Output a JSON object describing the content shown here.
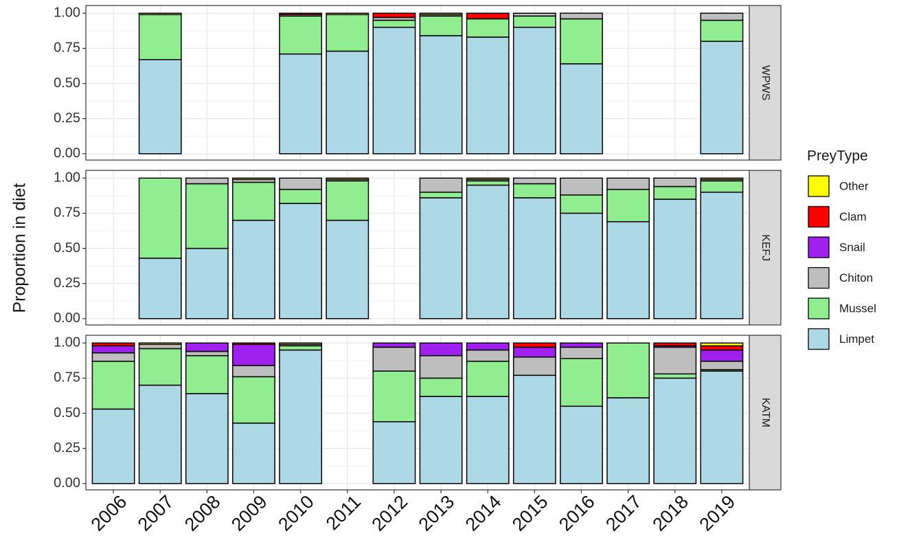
{
  "ylabel": "Proportion in diet",
  "legend_title": "PreyType",
  "chart_data": [
    {
      "type": "bar",
      "stacked": true,
      "panel": "WPWS",
      "categories": [
        "2006",
        "2007",
        "2008",
        "2009",
        "2010",
        "2011",
        "2012",
        "2013",
        "2014",
        "2015",
        "2016",
        "2017",
        "2018",
        "2019"
      ],
      "series": [
        {
          "name": "Limpet",
          "color": "#add8e6",
          "values": [
            null,
            0.67,
            null,
            null,
            0.71,
            0.73,
            0.9,
            0.84,
            0.83,
            0.9,
            0.64,
            null,
            null,
            0.8
          ]
        },
        {
          "name": "Mussel",
          "color": "#90ee90",
          "values": [
            null,
            0.32,
            null,
            null,
            0.27,
            0.26,
            0.05,
            0.14,
            0.13,
            0.08,
            0.32,
            null,
            null,
            0.15
          ]
        },
        {
          "name": "Chiton",
          "color": "#bebebe",
          "values": [
            null,
            0,
            null,
            null,
            0.01,
            0,
            0.02,
            0.01,
            0,
            0.02,
            0.04,
            null,
            null,
            0.05
          ]
        },
        {
          "name": "Snail",
          "color": "#a020f0",
          "values": [
            null,
            0,
            null,
            null,
            0,
            0,
            0,
            0,
            0,
            0,
            0,
            null,
            null,
            0
          ]
        },
        {
          "name": "Clam",
          "color": "#ff0000",
          "values": [
            null,
            0,
            null,
            null,
            0.01,
            0,
            0.03,
            0,
            0.04,
            0,
            0,
            null,
            null,
            0
          ]
        },
        {
          "name": "Other",
          "color": "#ffff00",
          "values": [
            null,
            0.01,
            null,
            null,
            0,
            0.01,
            0,
            0.01,
            0,
            0,
            0,
            null,
            null,
            0
          ]
        }
      ],
      "ylim": [
        -0.045,
        1.055
      ],
      "yticks": [
        {
          "value": 0,
          "label": "0.00"
        },
        {
          "value": 0.25,
          "label": "0.25"
        },
        {
          "value": 0.5,
          "label": "0.50"
        },
        {
          "value": 0.75,
          "label": "0.75"
        },
        {
          "value": 1,
          "label": "1.00"
        }
      ],
      "grid": true
    },
    {
      "type": "bar",
      "stacked": true,
      "panel": "KEFJ",
      "categories": [
        "2006",
        "2007",
        "2008",
        "2009",
        "2010",
        "2011",
        "2012",
        "2013",
        "2014",
        "2015",
        "2016",
        "2017",
        "2018",
        "2019"
      ],
      "series": [
        {
          "name": "Limpet",
          "color": "#add8e6",
          "values": [
            null,
            0.43,
            0.5,
            0.7,
            0.82,
            0.7,
            null,
            0.86,
            0.95,
            0.86,
            0.75,
            0.69,
            0.85,
            0.9
          ]
        },
        {
          "name": "Mussel",
          "color": "#90ee90",
          "values": [
            null,
            0.57,
            0.46,
            0.27,
            0.1,
            0.28,
            null,
            0.04,
            0.03,
            0.1,
            0.13,
            0.23,
            0.09,
            0.08
          ]
        },
        {
          "name": "Chiton",
          "color": "#bebebe",
          "values": [
            null,
            0,
            0.04,
            0.02,
            0.08,
            0.01,
            null,
            0.1,
            0.01,
            0.04,
            0.12,
            0.08,
            0.06,
            0.01
          ]
        },
        {
          "name": "Snail",
          "color": "#a020f0",
          "values": [
            null,
            0,
            0,
            0,
            0,
            0,
            null,
            0,
            0,
            0,
            0,
            0,
            0,
            0
          ]
        },
        {
          "name": "Clam",
          "color": "#ff0000",
          "values": [
            null,
            0,
            0,
            0,
            0,
            0,
            null,
            0,
            0,
            0,
            0,
            0,
            0,
            0
          ]
        },
        {
          "name": "Other",
          "color": "#ffff00",
          "values": [
            null,
            0,
            0,
            0.01,
            0,
            0.01,
            null,
            0,
            0.01,
            0,
            0,
            0,
            0,
            0.01
          ]
        }
      ],
      "ylim": [
        -0.045,
        1.055
      ],
      "yticks": [
        {
          "value": 0,
          "label": "0.00"
        },
        {
          "value": 0.25,
          "label": "0.25"
        },
        {
          "value": 0.5,
          "label": "0.50"
        },
        {
          "value": 0.75,
          "label": "0.75"
        },
        {
          "value": 1,
          "label": "1.00"
        }
      ],
      "grid": true
    },
    {
      "type": "bar",
      "stacked": true,
      "panel": "KATM",
      "categories": [
        "2006",
        "2007",
        "2008",
        "2009",
        "2010",
        "2011",
        "2012",
        "2013",
        "2014",
        "2015",
        "2016",
        "2017",
        "2018",
        "2019"
      ],
      "series": [
        {
          "name": "Limpet",
          "color": "#add8e6",
          "values": [
            0.53,
            0.7,
            0.64,
            0.43,
            0.95,
            null,
            0.44,
            0.62,
            0.62,
            0.77,
            0.55,
            0.61,
            0.75,
            0.8
          ]
        },
        {
          "name": "Mussel",
          "color": "#90ee90",
          "values": [
            0.34,
            0.26,
            0.27,
            0.33,
            0.03,
            null,
            0.36,
            0.13,
            0.25,
            0,
            0.34,
            0.39,
            0.03,
            0.01
          ]
        },
        {
          "name": "Chiton",
          "color": "#bebebe",
          "values": [
            0.06,
            0.03,
            0.03,
            0.08,
            0.01,
            null,
            0.17,
            0.16,
            0.08,
            0.13,
            0.08,
            0,
            0.19,
            0.06
          ]
        },
        {
          "name": "Snail",
          "color": "#a020f0",
          "values": [
            0.05,
            0,
            0.06,
            0.15,
            0,
            null,
            0.03,
            0.09,
            0.05,
            0.07,
            0.03,
            0,
            0.01,
            0.08
          ]
        },
        {
          "name": "Clam",
          "color": "#ff0000",
          "values": [
            0.02,
            0,
            0,
            0.01,
            0,
            null,
            0,
            0,
            0,
            0.03,
            0,
            0,
            0.02,
            0.03
          ]
        },
        {
          "name": "Other",
          "color": "#ffff00",
          "values": [
            0,
            0.01,
            0,
            0,
            0.01,
            null,
            0,
            0,
            0,
            0,
            0,
            0,
            0,
            0.02
          ]
        }
      ],
      "ylim": [
        -0.045,
        1.055
      ],
      "yticks": [
        {
          "value": 0,
          "label": "0.00"
        },
        {
          "value": 0.25,
          "label": "0.25"
        },
        {
          "value": 0.5,
          "label": "0.50"
        },
        {
          "value": 0.75,
          "label": "0.75"
        },
        {
          "value": 1,
          "label": "1.00"
        }
      ],
      "grid": true
    }
  ]
}
